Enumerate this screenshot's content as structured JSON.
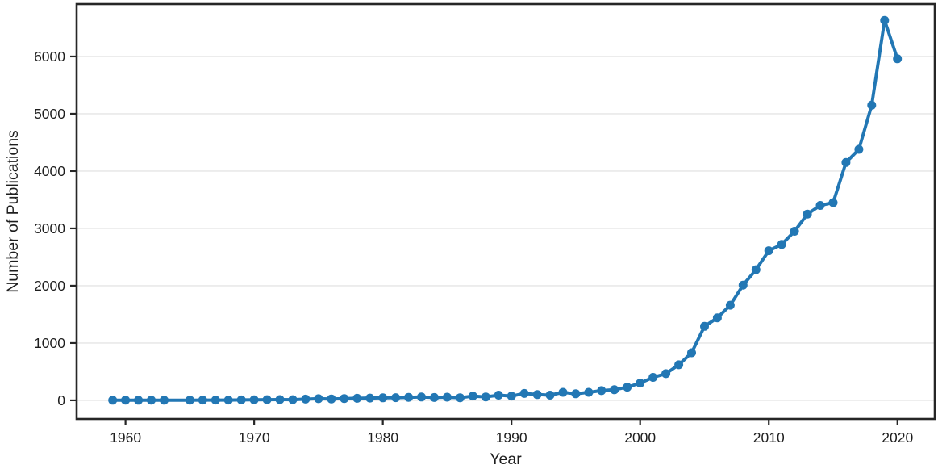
{
  "chart_data": {
    "type": "line",
    "title": "",
    "xlabel": "Year",
    "ylabel": "Number of Publications",
    "legend": "none",
    "grid": "horizontal",
    "x_ticks": [
      1960,
      1970,
      1980,
      1990,
      2000,
      2010,
      2020
    ],
    "y_ticks": [
      0,
      1000,
      2000,
      3000,
      4000,
      5000,
      6000
    ],
    "xlim": [
      1956.2,
      2022.9
    ],
    "ylim": [
      -325,
      6915
    ],
    "x": [
      1959,
      1960,
      1961,
      1962,
      1963,
      1964,
      1965,
      1966,
      1967,
      1968,
      1969,
      1970,
      1971,
      1972,
      1973,
      1974,
      1975,
      1976,
      1977,
      1978,
      1979,
      1980,
      1981,
      1982,
      1983,
      1984,
      1985,
      1986,
      1987,
      1988,
      1989,
      1990,
      1991,
      1992,
      1993,
      1994,
      1995,
      1996,
      1997,
      1998,
      1999,
      2000,
      2001,
      2002,
      2003,
      2004,
      2005,
      2006,
      2007,
      2008,
      2009,
      2010,
      2011,
      2012,
      2013,
      2014,
      2015,
      2016,
      2017,
      2018,
      2019,
      2020
    ],
    "values": [
      2,
      3,
      2,
      3,
      2,
      null,
      3,
      4,
      5,
      5,
      7,
      9,
      11,
      13,
      12,
      22,
      28,
      25,
      32,
      36,
      40,
      44,
      47,
      52,
      58,
      50,
      55,
      45,
      75,
      60,
      90,
      75,
      120,
      100,
      90,
      140,
      115,
      140,
      170,
      185,
      230,
      300,
      400,
      465,
      620,
      830,
      1290,
      1440,
      1660,
      2010,
      2280,
      2610,
      2720,
      2950,
      3250,
      3400,
      3450,
      4150,
      4380,
      5150,
      6630,
      5960
    ],
    "missing_marker_note": "no marker drawn for 1964 (null value), line interpolates",
    "line_color": "#2277b4",
    "marker": "circle",
    "marker_radius": 5.5,
    "line_width": 4,
    "grid_color": "#e9e9e9",
    "spine_color": "#262626",
    "text_color": "#1e1e1e",
    "background_color": "#ffffff"
  }
}
